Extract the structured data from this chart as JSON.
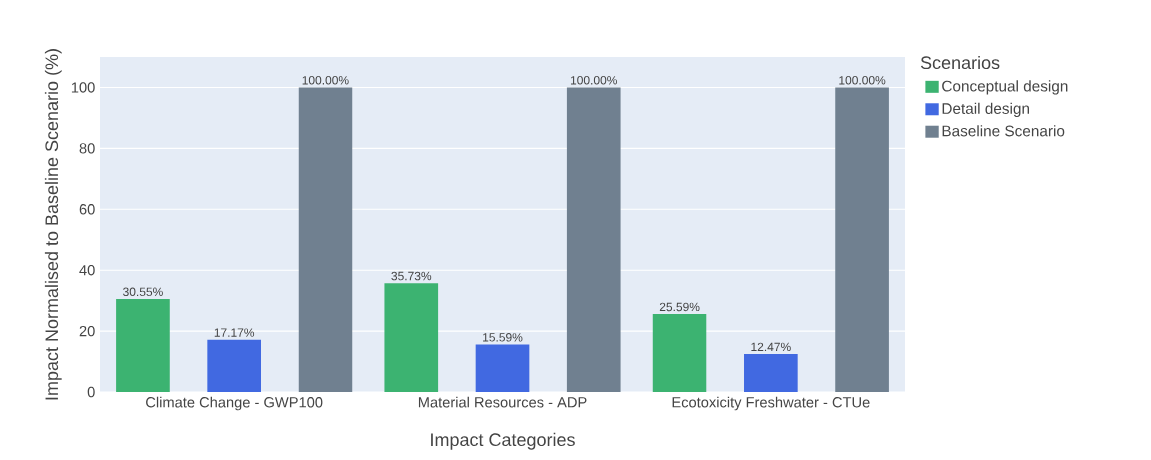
{
  "chart_data": {
    "type": "bar",
    "xlabel": "Impact Categories",
    "ylabel": "Impact Normalised to Baseline Scenario (%)",
    "legend_title": "Scenarios",
    "categories": [
      "Climate Change - GWP100",
      "Material Resources - ADP",
      "Ecotoxicity Freshwater - CTUe"
    ],
    "series": [
      {
        "name": "Conceptual design",
        "color": "#3cb371",
        "values": [
          30.55,
          35.73,
          25.59
        ],
        "value_labels": [
          "30.55%",
          "35.73%",
          "25.59%"
        ]
      },
      {
        "name": "Detail design",
        "color": "#4169e1",
        "values": [
          17.17,
          15.59,
          12.47
        ],
        "value_labels": [
          "17.17%",
          "15.59%",
          "12.47%"
        ]
      },
      {
        "name": "Baseline Scenario",
        "color": "#708090",
        "values": [
          100,
          100,
          100
        ],
        "value_labels": [
          "100.00%",
          "100.00%",
          "100.00%"
        ]
      }
    ],
    "ylim": [
      0,
      110
    ],
    "yticks": [
      0,
      20,
      40,
      60,
      80,
      100
    ],
    "grid": "y",
    "legend": "right"
  }
}
